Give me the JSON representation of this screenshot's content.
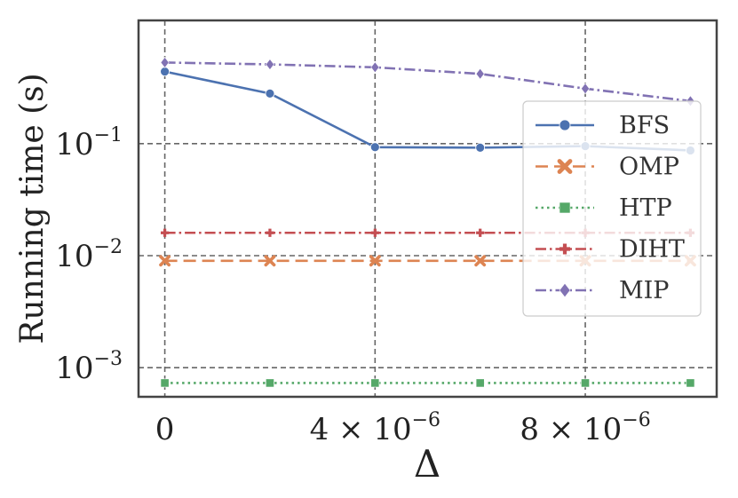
{
  "chart_data": {
    "type": "line",
    "title": "",
    "xlabel": "Δ",
    "ylabel": "Running time (s)",
    "x": [
      0,
      2e-06,
      4e-06,
      6e-06,
      8e-06,
      1e-05
    ],
    "xlim": [
      -5e-07,
      1.05e-05
    ],
    "ylim_log10": [
      -3.26,
      0.1
    ],
    "yscale": "log",
    "grid": true,
    "legend_position": "right",
    "x_ticks": [
      {
        "value": 0,
        "label": "0",
        "mantissa": "",
        "exponent": ""
      },
      {
        "value": 4e-06,
        "label": "",
        "mantissa": "4 × 10",
        "exponent": "−6"
      },
      {
        "value": 8e-06,
        "label": "",
        "mantissa": "8 × 10",
        "exponent": "−6"
      }
    ],
    "y_ticks": [
      {
        "value": 0.1,
        "base": "10",
        "exponent": "−1"
      },
      {
        "value": 0.01,
        "base": "10",
        "exponent": "−2"
      },
      {
        "value": 0.001,
        "base": "10",
        "exponent": "−3"
      }
    ],
    "series": [
      {
        "name": "BFS",
        "color": "#4c72b0",
        "marker": "circle",
        "dash": "",
        "values": [
          0.44,
          0.28,
          0.093,
          0.092,
          0.095,
          0.087
        ]
      },
      {
        "name": "OMP",
        "color": "#dd8452",
        "marker": "x",
        "dash": "14 7",
        "values": [
          0.009,
          0.009,
          0.009,
          0.009,
          0.009,
          0.009
        ]
      },
      {
        "name": "HTP",
        "color": "#55a868",
        "marker": "square",
        "dash": "2.5 4",
        "values": [
          0.00073,
          0.00073,
          0.00073,
          0.00073,
          0.00073,
          0.00073
        ]
      },
      {
        "name": "DIHT",
        "color": "#c44e52",
        "marker": "plus",
        "dash": "12 4 2.5 4",
        "values": [
          0.016,
          0.016,
          0.016,
          0.016,
          0.016,
          0.016
        ]
      },
      {
        "name": "MIP",
        "color": "#8172b3",
        "marker": "diamond",
        "dash": "12 4 2.5 4",
        "values": [
          0.53,
          0.51,
          0.48,
          0.42,
          0.31,
          0.24
        ]
      }
    ]
  }
}
